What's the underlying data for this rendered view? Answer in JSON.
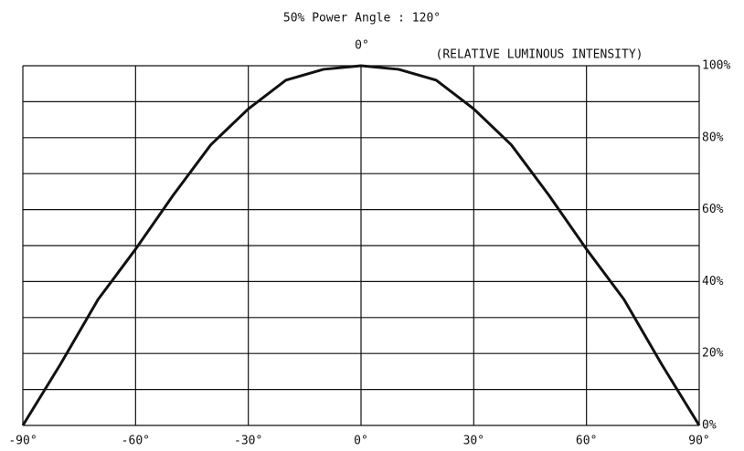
{
  "chart_data": {
    "type": "line",
    "title": "50% Power Angle : 120°",
    "top_label": "0°",
    "y_label": "(RELATIVE LUMINOUS INTENSITY)",
    "x": [
      -90,
      -80,
      -70,
      -60,
      -50,
      -40,
      -30,
      -20,
      -10,
      0,
      10,
      20,
      30,
      40,
      50,
      60,
      70,
      80,
      90
    ],
    "series": [
      {
        "color": "#111111",
        "values": [
          0,
          17,
          35,
          49,
          64,
          78,
          88,
          96,
          99,
          100,
          99,
          96,
          88,
          78,
          64,
          49,
          35,
          17,
          0
        ]
      }
    ],
    "xlim": [
      -90,
      90
    ],
    "xticks": [
      {
        "value": -90,
        "label": "-90°"
      },
      {
        "value": -60,
        "label": "-60°"
      },
      {
        "value": -30,
        "label": "-30°"
      },
      {
        "value": 0,
        "label": "0°"
      },
      {
        "value": 30,
        "label": "30°"
      },
      {
        "value": 60,
        "label": "60°"
      },
      {
        "value": 90,
        "label": "90°"
      }
    ],
    "ylim": [
      0,
      100
    ],
    "yticks": [
      {
        "value": 0,
        "label": "0%"
      },
      {
        "value": 20,
        "label": "20%"
      },
      {
        "value": 40,
        "label": "40%"
      },
      {
        "value": 60,
        "label": "60%"
      },
      {
        "value": 80,
        "label": "80%"
      },
      {
        "value": 100,
        "label": "100%"
      }
    ],
    "ygrid": [
      0,
      10,
      20,
      30,
      40,
      50,
      60,
      70,
      80,
      90,
      100
    ],
    "grid": true
  }
}
